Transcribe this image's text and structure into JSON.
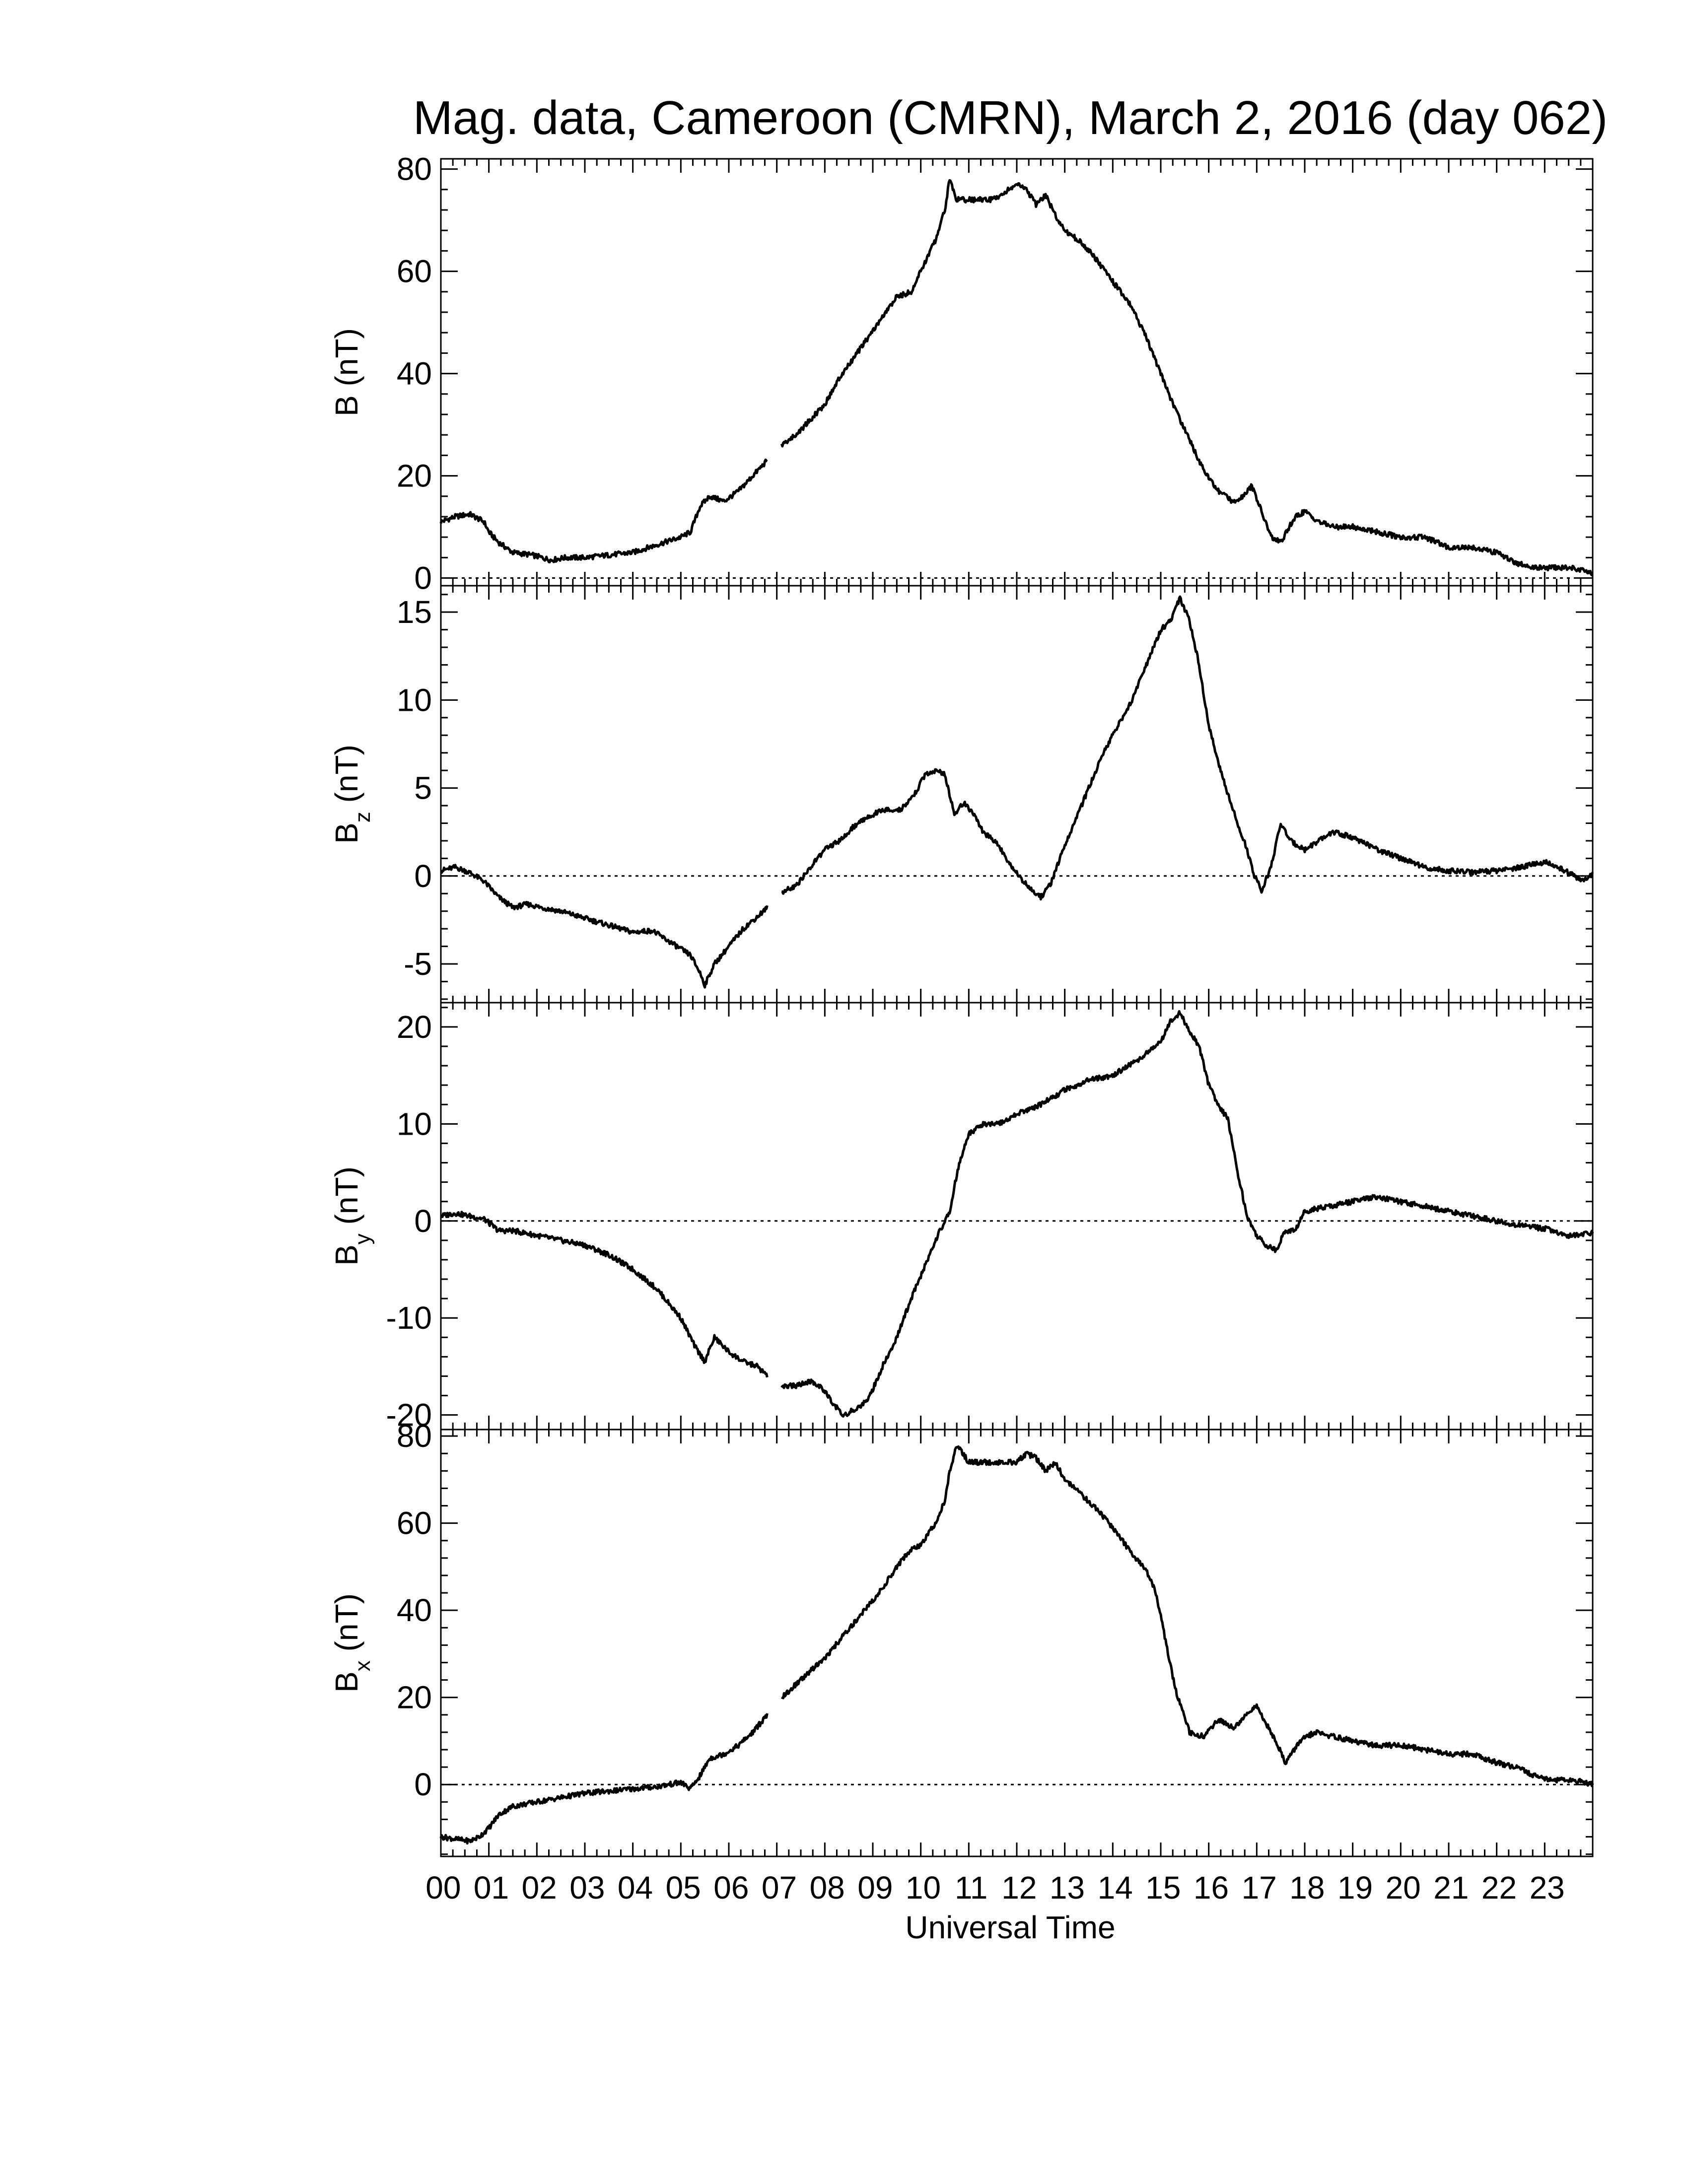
{
  "figure": {
    "title": "Mag. data, Cameroon (CMRN), March 2, 2016 (day 062)",
    "xlabel": "Universal Time"
  },
  "chart_data": [
    {
      "type": "line",
      "panel": "B",
      "ylabel": "B (nT)",
      "ylabel_main": "B",
      "ylabel_sub": "",
      "ylabel_unit": " (nT)",
      "xlim": [
        0,
        24
      ],
      "ylim": [
        -1.5,
        82
      ],
      "yticks": [
        0,
        20,
        40,
        60,
        80
      ],
      "ytick_labels": [
        "0",
        "20",
        "40",
        "60",
        "80"
      ],
      "zero_line": true,
      "gaps": [
        [
          6.8,
          7.1
        ]
      ],
      "series": [
        {
          "x": [
            0,
            0.3,
            0.6,
            0.9,
            1.0,
            1.2,
            1.5,
            1.9,
            2.3,
            2.6,
            3.0,
            3.5,
            4.0,
            4.5,
            5.0,
            5.2,
            5.4,
            5.6,
            5.9,
            6.2,
            6.5,
            6.8,
            7.1,
            7.4,
            7.7,
            8.0,
            8.3,
            8.6,
            8.9,
            9.2,
            9.5,
            9.8,
            10.0,
            10.3,
            10.5,
            10.6,
            10.75,
            11.0,
            11.5,
            12.0,
            12.2,
            12.4,
            12.6,
            12.8,
            13.0,
            13.3,
            13.6,
            14.0,
            14.4,
            14.7,
            15.0,
            15.3,
            15.6,
            15.9,
            16.2,
            16.5,
            16.7,
            16.9,
            17.1,
            17.3,
            17.5,
            17.8,
            18.0,
            18.3,
            18.6,
            19.0,
            19.5,
            20.0,
            20.5,
            21.0,
            21.5,
            22.0,
            22.4,
            22.8,
            23.2,
            23.6,
            24.0
          ],
          "y": [
            11,
            12,
            12.5,
            11,
            9,
            7,
            5,
            4.5,
            3.5,
            4,
            4,
            4.5,
            5,
            6.5,
            8,
            9,
            14,
            16,
            15,
            17,
            20,
            23,
            26,
            28,
            31,
            34,
            39,
            43,
            47,
            51,
            55,
            56,
            60,
            66,
            72,
            78,
            74,
            74,
            74,
            77,
            76,
            73,
            75,
            71,
            68,
            66,
            63,
            58,
            53,
            47,
            40,
            33,
            27,
            21,
            17,
            15,
            16,
            18,
            13,
            8,
            7,
            12,
            13,
            11,
            10,
            10,
            9,
            8,
            8,
            6,
            6,
            5,
            3,
            2,
            2,
            2,
            1
          ]
        }
      ]
    },
    {
      "type": "line",
      "panel": "Bz",
      "ylabel": "Bz (nT)",
      "ylabel_main": "B",
      "ylabel_sub": "z",
      "ylabel_unit": " (nT)",
      "xlim": [
        0,
        24
      ],
      "ylim": [
        -7.2,
        16.5
      ],
      "yticks": [
        -5,
        0,
        5,
        10,
        15
      ],
      "ytick_labels": [
        "-5",
        "0",
        "5",
        "10",
        "15"
      ],
      "zero_line": true,
      "gaps": [
        [
          6.8,
          7.1
        ]
      ],
      "series": [
        {
          "x": [
            0,
            0.3,
            0.6,
            0.9,
            1.2,
            1.5,
            1.8,
            2.1,
            2.5,
            3.0,
            3.5,
            4.0,
            4.4,
            4.8,
            5.2,
            5.4,
            5.5,
            5.7,
            6.0,
            6.3,
            6.6,
            6.8,
            7.1,
            7.4,
            7.7,
            8.0,
            8.3,
            8.6,
            9.0,
            9.3,
            9.6,
            9.9,
            10.1,
            10.3,
            10.5,
            10.7,
            10.9,
            11.1,
            11.3,
            11.6,
            11.9,
            12.2,
            12.5,
            12.7,
            12.9,
            13.2,
            13.5,
            13.8,
            14.1,
            14.4,
            14.7,
            15.0,
            15.2,
            15.4,
            15.6,
            15.8,
            16.0,
            16.3,
            16.6,
            16.8,
            16.95,
            17.1,
            17.3,
            17.5,
            17.7,
            18.0,
            18.3,
            18.6,
            19.0,
            19.5,
            20.0,
            20.5,
            21.0,
            21.5,
            22.0,
            22.5,
            23.0,
            23.5,
            23.8,
            24.0
          ],
          "y": [
            0.3,
            0.5,
            0.2,
            -0.3,
            -1.2,
            -1.8,
            -1.6,
            -1.8,
            -2.0,
            -2.4,
            -2.8,
            -3.2,
            -3.1,
            -3.8,
            -4.5,
            -5.5,
            -6.2,
            -5.0,
            -4.0,
            -3.0,
            -2.3,
            -1.8,
            -0.9,
            -0.6,
            0.5,
            1.5,
            2.0,
            2.8,
            3.5,
            3.8,
            3.8,
            4.8,
            5.8,
            6.0,
            5.8,
            3.5,
            4.2,
            3.5,
            2.5,
            1.8,
            0.5,
            -0.5,
            -1.2,
            -0.5,
            1.0,
            3.0,
            5.0,
            7.0,
            8.5,
            10.0,
            12.0,
            14.0,
            14.5,
            15.8,
            14.5,
            12.0,
            8.5,
            5.5,
            3.0,
            1.5,
            0,
            -0.8,
            0.5,
            3.0,
            2.0,
            1.5,
            2.0,
            2.5,
            2.2,
            1.5,
            1.0,
            0.5,
            0.3,
            0.2,
            0.3,
            0.5,
            0.8,
            0.2,
            -0.3,
            0.1
          ]
        }
      ]
    },
    {
      "type": "line",
      "panel": "By",
      "ylabel": "By (nT)",
      "ylabel_main": "B",
      "ylabel_sub": "y",
      "ylabel_unit": " (nT)",
      "xlim": [
        0,
        24
      ],
      "ylim": [
        -21.5,
        22.5
      ],
      "yticks": [
        -20,
        -10,
        0,
        10,
        20
      ],
      "ytick_labels": [
        "-20",
        "-10",
        "0",
        "10",
        "20"
      ],
      "zero_line": true,
      "gaps": [
        [
          6.8,
          7.1
        ]
      ],
      "series": [
        {
          "x": [
            0,
            0.3,
            0.6,
            0.9,
            1.2,
            1.5,
            2.0,
            2.5,
            3.0,
            3.5,
            4.0,
            4.5,
            5.0,
            5.3,
            5.5,
            5.7,
            6.0,
            6.3,
            6.6,
            6.8,
            7.1,
            7.4,
            7.7,
            8.0,
            8.2,
            8.4,
            8.6,
            8.9,
            9.2,
            9.5,
            9.8,
            10.1,
            10.4,
            10.6,
            10.8,
            11.0,
            11.3,
            11.6,
            12.0,
            12.5,
            13.0,
            13.5,
            14.0,
            14.5,
            15.0,
            15.2,
            15.4,
            15.6,
            15.8,
            16.0,
            16.2,
            16.4,
            16.6,
            16.8,
            17.0,
            17.2,
            17.4,
            17.6,
            17.8,
            18.0,
            18.5,
            19.0,
            19.5,
            20.0,
            20.5,
            21.0,
            21.5,
            22.0,
            22.5,
            23.0,
            23.5,
            24.0
          ],
          "y": [
            0.5,
            0.8,
            0.5,
            0.2,
            -1.0,
            -1.0,
            -1.5,
            -2.0,
            -2.5,
            -3.5,
            -5.0,
            -7.0,
            -10.0,
            -13.0,
            -14.5,
            -12.0,
            -13.5,
            -14.5,
            -15.0,
            -16.0,
            -17.0,
            -17.0,
            -16.5,
            -17.5,
            -19.0,
            -20.0,
            -19.5,
            -18.5,
            -15.0,
            -12.0,
            -8.0,
            -4.5,
            -1.0,
            1.0,
            6.0,
            9.0,
            10.0,
            10.0,
            11.0,
            12.0,
            13.5,
            14.5,
            15.0,
            16.5,
            18.5,
            20.5,
            21.5,
            19.5,
            18.0,
            14.0,
            12.0,
            10.5,
            5.0,
            0.5,
            -1.5,
            -2.5,
            -3.0,
            -1.0,
            -1.0,
            1.0,
            1.5,
            2.0,
            2.5,
            2.0,
            1.5,
            1.0,
            0.5,
            0,
            -0.5,
            -0.8,
            -1.5,
            -1.2
          ]
        }
      ]
    },
    {
      "type": "line",
      "panel": "Bx",
      "ylabel": "Bx (nT)",
      "ylabel_main": "B",
      "ylabel_sub": "x",
      "ylabel_unit": " (nT)",
      "xlim": [
        0,
        24
      ],
      "ylim": [
        -16.5,
        81.5
      ],
      "yticks": [
        0,
        20,
        40,
        60,
        80
      ],
      "ytick_labels": [
        "0",
        "20",
        "40",
        "60",
        "80"
      ],
      "zero_line": true,
      "gaps": [
        [
          6.8,
          7.1
        ]
      ],
      "series": [
        {
          "x": [
            0,
            0.3,
            0.6,
            0.8,
            1.0,
            1.2,
            1.5,
            2.0,
            2.5,
            3.0,
            3.5,
            4.0,
            4.5,
            5.0,
            5.2,
            5.4,
            5.6,
            5.9,
            6.2,
            6.5,
            6.8,
            7.1,
            7.4,
            7.7,
            8.0,
            8.3,
            8.6,
            8.9,
            9.2,
            9.5,
            9.8,
            10.0,
            10.3,
            10.5,
            10.6,
            10.75,
            11.0,
            11.5,
            12.0,
            12.2,
            12.4,
            12.6,
            12.8,
            13.0,
            13.3,
            13.6,
            14.0,
            14.4,
            14.7,
            14.9,
            15.1,
            15.3,
            15.6,
            15.9,
            16.2,
            16.5,
            16.8,
            17.0,
            17.2,
            17.4,
            17.6,
            17.9,
            18.2,
            18.6,
            19.0,
            19.5,
            20.0,
            20.5,
            21.0,
            21.5,
            22.0,
            22.4,
            22.8,
            23.2,
            23.6,
            24.0
          ],
          "y": [
            -12,
            -12.5,
            -13,
            -12,
            -10,
            -7,
            -5,
            -4,
            -3,
            -2,
            -1.5,
            -1,
            -0.5,
            0.5,
            -1,
            2,
            6,
            7,
            9,
            12,
            16,
            20,
            23,
            26,
            29,
            33,
            37,
            41,
            45,
            50,
            54,
            55,
            60,
            65,
            72,
            78,
            74,
            74,
            74,
            76,
            75,
            72,
            74,
            70,
            67,
            64,
            59,
            53,
            49,
            44,
            33,
            22,
            12,
            11,
            15,
            13,
            16,
            18,
            14,
            10,
            5,
            10,
            12,
            11,
            10,
            9,
            9,
            8,
            7,
            7,
            5,
            4,
            2,
            1,
            1,
            0
          ]
        }
      ]
    }
  ]
}
